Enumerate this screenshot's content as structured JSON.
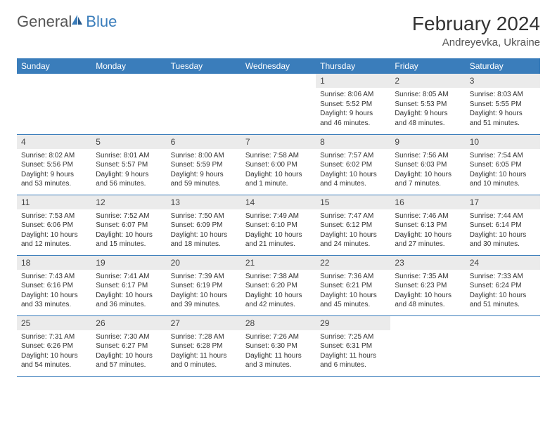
{
  "brand": {
    "part1": "General",
    "part2": "Blue"
  },
  "title": "February 2024",
  "location": "Andreyevka, Ukraine",
  "colors": {
    "header_bg": "#3a7dbb",
    "header_fg": "#ffffff",
    "daynum_bg": "#ebebeb",
    "row_border": "#3a7dbb",
    "page_bg": "#ffffff",
    "text": "#333333"
  },
  "weekdays": [
    "Sunday",
    "Monday",
    "Tuesday",
    "Wednesday",
    "Thursday",
    "Friday",
    "Saturday"
  ],
  "leading_blanks": 4,
  "days": [
    {
      "n": 1,
      "sunrise": "8:06 AM",
      "sunset": "5:52 PM",
      "daylight": "9 hours and 46 minutes."
    },
    {
      "n": 2,
      "sunrise": "8:05 AM",
      "sunset": "5:53 PM",
      "daylight": "9 hours and 48 minutes."
    },
    {
      "n": 3,
      "sunrise": "8:03 AM",
      "sunset": "5:55 PM",
      "daylight": "9 hours and 51 minutes."
    },
    {
      "n": 4,
      "sunrise": "8:02 AM",
      "sunset": "5:56 PM",
      "daylight": "9 hours and 53 minutes."
    },
    {
      "n": 5,
      "sunrise": "8:01 AM",
      "sunset": "5:57 PM",
      "daylight": "9 hours and 56 minutes."
    },
    {
      "n": 6,
      "sunrise": "8:00 AM",
      "sunset": "5:59 PM",
      "daylight": "9 hours and 59 minutes."
    },
    {
      "n": 7,
      "sunrise": "7:58 AM",
      "sunset": "6:00 PM",
      "daylight": "10 hours and 1 minute."
    },
    {
      "n": 8,
      "sunrise": "7:57 AM",
      "sunset": "6:02 PM",
      "daylight": "10 hours and 4 minutes."
    },
    {
      "n": 9,
      "sunrise": "7:56 AM",
      "sunset": "6:03 PM",
      "daylight": "10 hours and 7 minutes."
    },
    {
      "n": 10,
      "sunrise": "7:54 AM",
      "sunset": "6:05 PM",
      "daylight": "10 hours and 10 minutes."
    },
    {
      "n": 11,
      "sunrise": "7:53 AM",
      "sunset": "6:06 PM",
      "daylight": "10 hours and 12 minutes."
    },
    {
      "n": 12,
      "sunrise": "7:52 AM",
      "sunset": "6:07 PM",
      "daylight": "10 hours and 15 minutes."
    },
    {
      "n": 13,
      "sunrise": "7:50 AM",
      "sunset": "6:09 PM",
      "daylight": "10 hours and 18 minutes."
    },
    {
      "n": 14,
      "sunrise": "7:49 AM",
      "sunset": "6:10 PM",
      "daylight": "10 hours and 21 minutes."
    },
    {
      "n": 15,
      "sunrise": "7:47 AM",
      "sunset": "6:12 PM",
      "daylight": "10 hours and 24 minutes."
    },
    {
      "n": 16,
      "sunrise": "7:46 AM",
      "sunset": "6:13 PM",
      "daylight": "10 hours and 27 minutes."
    },
    {
      "n": 17,
      "sunrise": "7:44 AM",
      "sunset": "6:14 PM",
      "daylight": "10 hours and 30 minutes."
    },
    {
      "n": 18,
      "sunrise": "7:43 AM",
      "sunset": "6:16 PM",
      "daylight": "10 hours and 33 minutes."
    },
    {
      "n": 19,
      "sunrise": "7:41 AM",
      "sunset": "6:17 PM",
      "daylight": "10 hours and 36 minutes."
    },
    {
      "n": 20,
      "sunrise": "7:39 AM",
      "sunset": "6:19 PM",
      "daylight": "10 hours and 39 minutes."
    },
    {
      "n": 21,
      "sunrise": "7:38 AM",
      "sunset": "6:20 PM",
      "daylight": "10 hours and 42 minutes."
    },
    {
      "n": 22,
      "sunrise": "7:36 AM",
      "sunset": "6:21 PM",
      "daylight": "10 hours and 45 minutes."
    },
    {
      "n": 23,
      "sunrise": "7:35 AM",
      "sunset": "6:23 PM",
      "daylight": "10 hours and 48 minutes."
    },
    {
      "n": 24,
      "sunrise": "7:33 AM",
      "sunset": "6:24 PM",
      "daylight": "10 hours and 51 minutes."
    },
    {
      "n": 25,
      "sunrise": "7:31 AM",
      "sunset": "6:26 PM",
      "daylight": "10 hours and 54 minutes."
    },
    {
      "n": 26,
      "sunrise": "7:30 AM",
      "sunset": "6:27 PM",
      "daylight": "10 hours and 57 minutes."
    },
    {
      "n": 27,
      "sunrise": "7:28 AM",
      "sunset": "6:28 PM",
      "daylight": "11 hours and 0 minutes."
    },
    {
      "n": 28,
      "sunrise": "7:26 AM",
      "sunset": "6:30 PM",
      "daylight": "11 hours and 3 minutes."
    },
    {
      "n": 29,
      "sunrise": "7:25 AM",
      "sunset": "6:31 PM",
      "daylight": "11 hours and 6 minutes."
    }
  ],
  "labels": {
    "sunrise": "Sunrise:",
    "sunset": "Sunset:",
    "daylight": "Daylight:"
  }
}
